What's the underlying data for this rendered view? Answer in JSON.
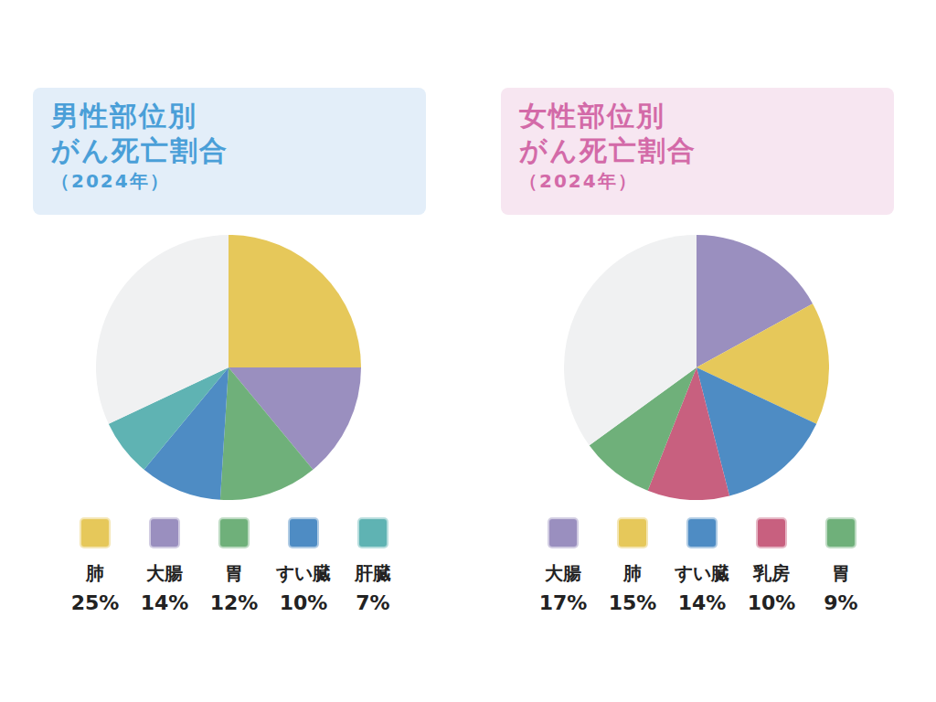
{
  "chart_data": [
    {
      "type": "pie",
      "title": "男性部位別\nがん死亡割合",
      "subtitle": "（2024年）",
      "categories": [
        "肺",
        "大腸",
        "胃",
        "すい臓",
        "肝臓",
        null
      ],
      "values": [
        25,
        14,
        12,
        10,
        7,
        32
      ],
      "value_labels": [
        "25%",
        "14%",
        "12%",
        "10%",
        "7%",
        null
      ],
      "colors": [
        "#e6c85a",
        "#9a8fbf",
        "#6fb07a",
        "#4e8cc4",
        "#5fb3b3",
        "#f0f1f2"
      ]
    },
    {
      "type": "pie",
      "title": "女性部位別\nがん死亡割合",
      "subtitle": "（2024年）",
      "categories": [
        "大腸",
        "肺",
        "すい臓",
        "乳房",
        "胃",
        null
      ],
      "values": [
        17,
        15,
        14,
        10,
        9,
        35
      ],
      "value_labels": [
        "17%",
        "15%",
        "14%",
        "10%",
        "9%",
        null
      ],
      "colors": [
        "#9a8fbf",
        "#e6c85a",
        "#4e8cc4",
        "#c8607f",
        "#6fb07a",
        "#f0f1f2"
      ]
    }
  ]
}
